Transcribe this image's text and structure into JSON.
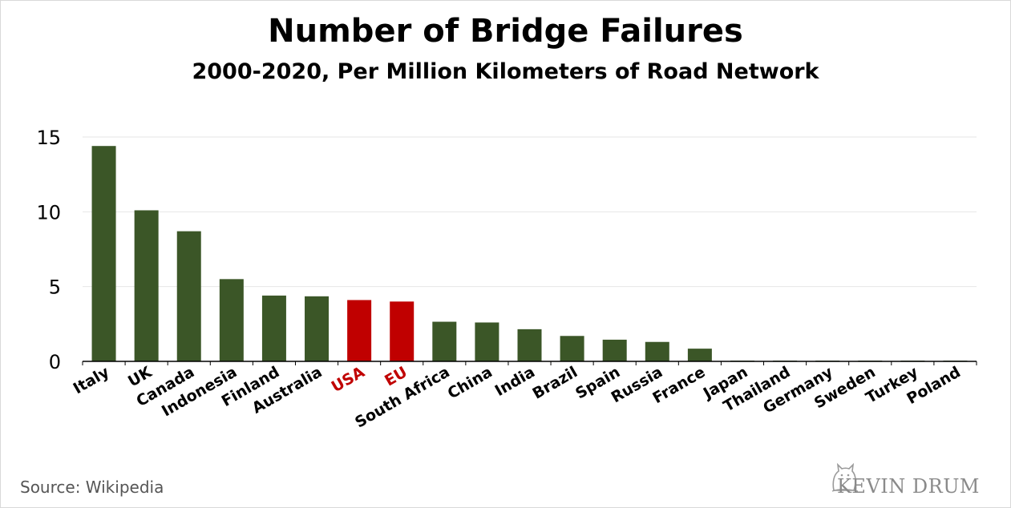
{
  "chart_data": {
    "type": "bar",
    "title": "Number of Bridge Failures",
    "subtitle": "2000-2020, Per Million Kilometers of Road Network",
    "categories": [
      "Italy",
      "UK",
      "Canada",
      "Indonesia",
      "Finland",
      "Australia",
      "USA",
      "EU",
      "South Africa",
      "China",
      "India",
      "Brazil",
      "Spain",
      "Russia",
      "France",
      "Japan",
      "Thailand",
      "Germany",
      "Sweden",
      "Turkey",
      "Poland"
    ],
    "values": [
      14.4,
      10.1,
      8.7,
      5.5,
      4.4,
      4.35,
      4.1,
      4.0,
      2.65,
      2.6,
      2.15,
      1.7,
      1.45,
      1.3,
      0.85,
      0.05,
      0.05,
      0.05,
      0.05,
      0.05,
      0.05
    ],
    "highlighted": [
      "USA",
      "EU"
    ],
    "ylim": [
      0,
      15
    ],
    "yticks": [
      0,
      5,
      10,
      15
    ],
    "grid": true,
    "colors": {
      "bar": "#3b5627",
      "highlight": "#c00000",
      "label": "#000000",
      "highlight_label": "#c00000",
      "grid": "#e6e6e6"
    }
  },
  "footer": {
    "source": "Source:  Wikipedia",
    "logo_text": "KEVIN DRUM"
  }
}
